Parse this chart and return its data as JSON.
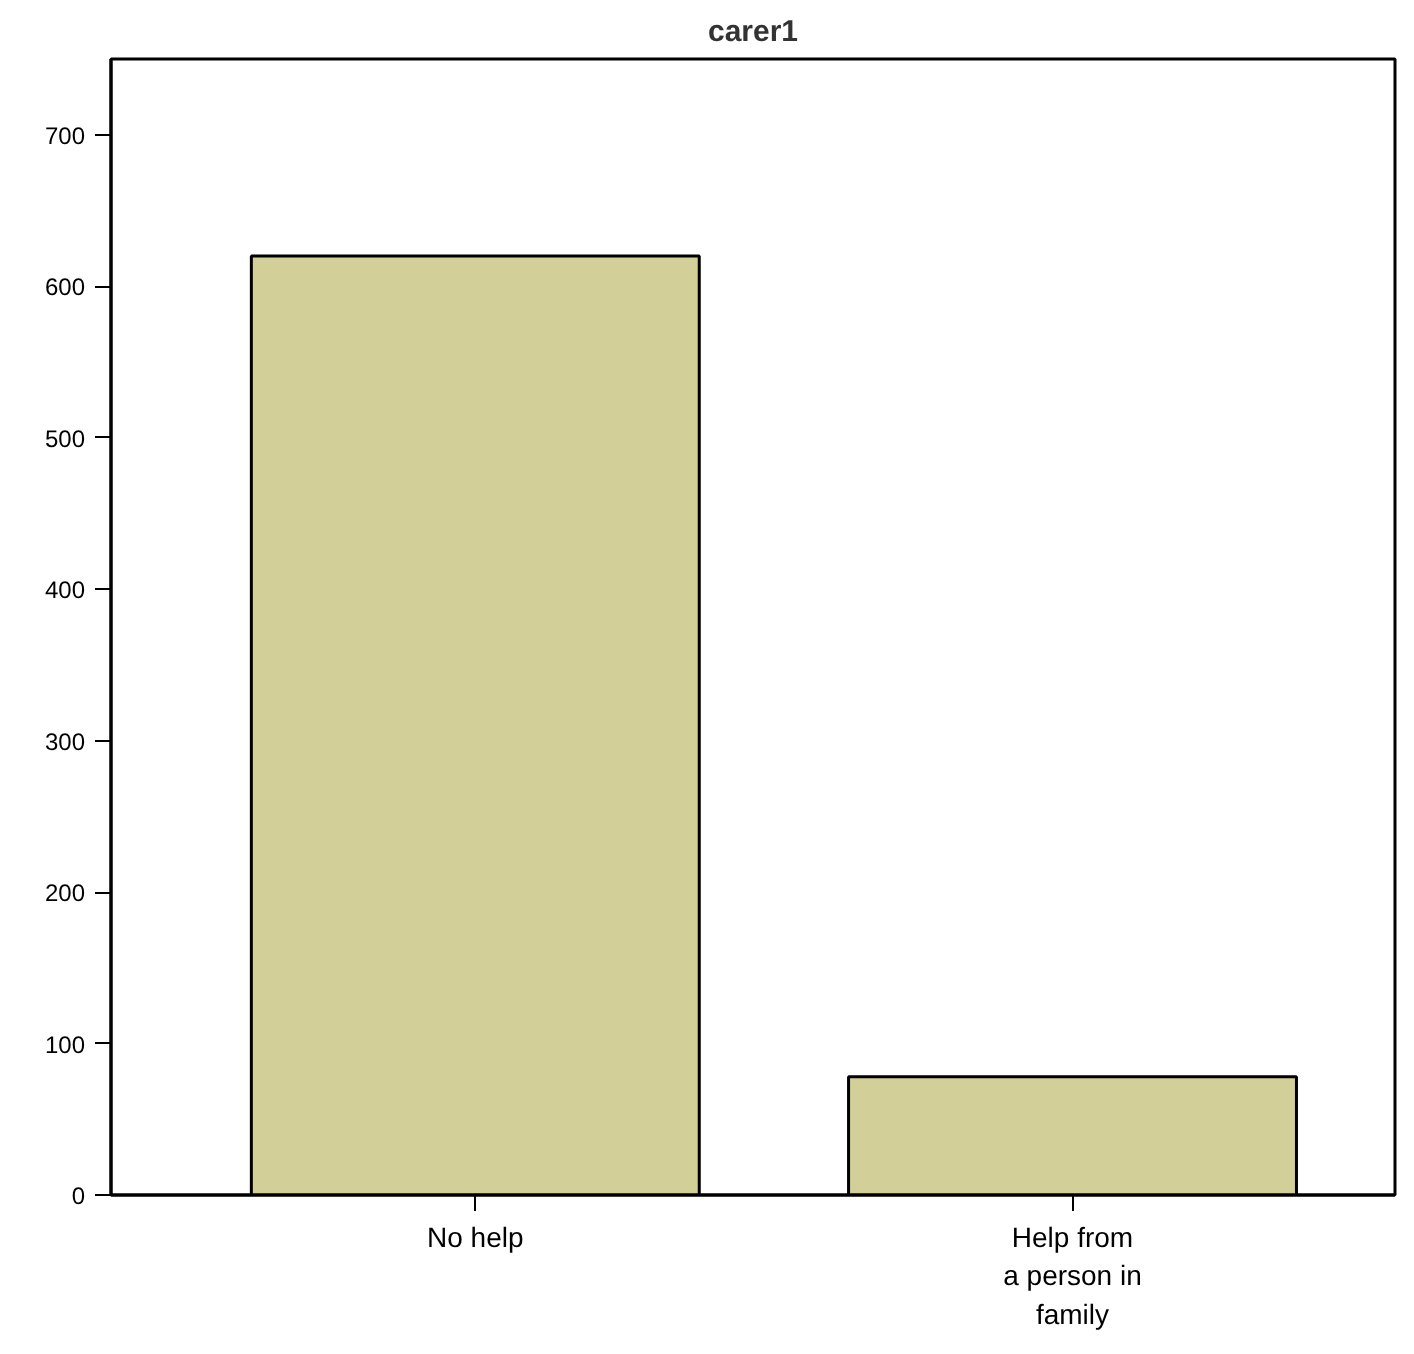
{
  "chart_data": {
    "type": "bar",
    "title": "carer1",
    "categories": [
      "No help",
      "Help from\na person in\nfamily"
    ],
    "values": [
      620,
      78
    ],
    "color": "#d3cf98",
    "ylim": [
      0,
      750
    ],
    "yticks": [
      0,
      100,
      200,
      300,
      400,
      500,
      600,
      700
    ],
    "grid": false
  }
}
